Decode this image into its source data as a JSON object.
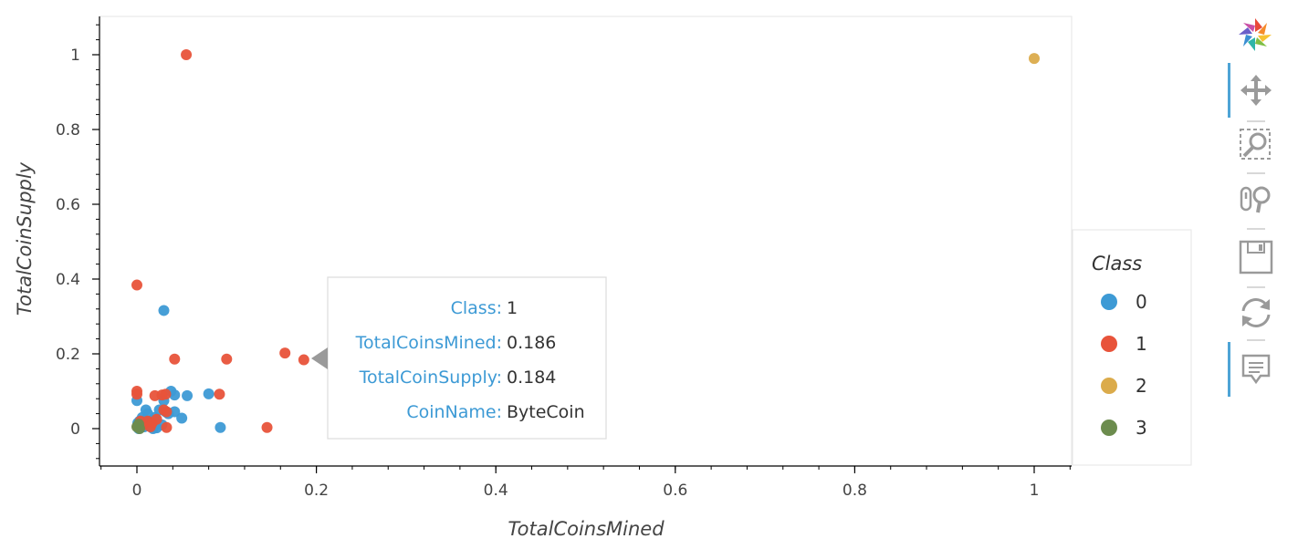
{
  "chart_data": {
    "type": "scatter",
    "title": "",
    "xlabel": "TotalCoinsMined",
    "ylabel": "TotalCoinSupply",
    "xlim": [
      -0.04,
      1.04
    ],
    "ylim": [
      -0.1,
      1.1
    ],
    "x_ticks": [
      0,
      0.2,
      0.4,
      0.6,
      0.8,
      1
    ],
    "y_ticks": [
      0,
      0.2,
      0.4,
      0.6,
      0.8,
      1
    ],
    "grid": false,
    "legend_title": "Class",
    "legend_position": "right",
    "series": [
      {
        "name": "0",
        "color": "#3d9ad5",
        "points": [
          [
            0.0,
            0.075
          ],
          [
            0.003,
            0.02
          ],
          [
            0.005,
            0.01
          ],
          [
            0.008,
            0.005
          ],
          [
            0.01,
            0.05
          ],
          [
            0.012,
            0.04
          ],
          [
            0.015,
            0.02
          ],
          [
            0.018,
            0.0
          ],
          [
            0.02,
            0.03
          ],
          [
            0.022,
            0.002
          ],
          [
            0.025,
            0.05
          ],
          [
            0.028,
            0.01
          ],
          [
            0.03,
            0.075
          ],
          [
            0.032,
            0.045
          ],
          [
            0.035,
            0.04
          ],
          [
            0.038,
            0.1
          ],
          [
            0.042,
            0.09
          ],
          [
            0.042,
            0.045
          ],
          [
            0.05,
            0.028
          ],
          [
            0.056,
            0.088
          ],
          [
            0.08,
            0.093
          ],
          [
            0.093,
            0.003
          ],
          [
            0.03,
            0.316
          ],
          [
            0.002,
            0.0
          ],
          [
            0.001,
            0.015
          ],
          [
            0.006,
            0.03
          ],
          [
            0.016,
            0.01
          ]
        ]
      },
      {
        "name": "1",
        "color": "#e8533a",
        "points": [
          [
            0.055,
            1.0
          ],
          [
            0.0,
            0.384
          ],
          [
            0.0,
            0.1
          ],
          [
            0.0,
            0.092
          ],
          [
            0.02,
            0.088
          ],
          [
            0.028,
            0.09
          ],
          [
            0.032,
            0.092
          ],
          [
            0.03,
            0.05
          ],
          [
            0.033,
            0.045
          ],
          [
            0.042,
            0.186
          ],
          [
            0.1,
            0.186
          ],
          [
            0.165,
            0.202
          ],
          [
            0.186,
            0.184
          ],
          [
            0.092,
            0.092
          ],
          [
            0.145,
            0.003
          ],
          [
            0.033,
            0.003
          ],
          [
            0.004,
            0.02
          ],
          [
            0.007,
            0.01
          ],
          [
            0.012,
            0.02
          ],
          [
            0.017,
            0.015
          ],
          [
            0.022,
            0.025
          ],
          [
            0.015,
            0.005
          ],
          [
            0.001,
            0.006
          ]
        ]
      },
      {
        "name": "2",
        "color": "#dbab4b",
        "points": [
          [
            1.0,
            0.99
          ]
        ]
      },
      {
        "name": "3",
        "color": "#6c8c4e",
        "points": [
          [
            0.0,
            0.005
          ],
          [
            0.002,
            0.012
          ],
          [
            0.003,
            0.0
          ]
        ]
      }
    ],
    "tooltip": {
      "rows": [
        {
          "key": "Class:",
          "value": "1"
        },
        {
          "key": "TotalCoinsMined:",
          "value": "0.186"
        },
        {
          "key": "TotalCoinSupply:",
          "value": "0.184"
        },
        {
          "key": "CoinName:",
          "value": "ByteCoin"
        }
      ],
      "anchor": [
        0.186,
        0.184
      ]
    }
  },
  "toolbar": {
    "tools": [
      {
        "name": "bokeh-logo-icon",
        "interactable": false
      },
      {
        "name": "pan-tool-icon",
        "interactable": true
      },
      {
        "name": "box-zoom-tool-icon",
        "interactable": true
      },
      {
        "name": "wheel-zoom-tool-icon",
        "interactable": true
      },
      {
        "name": "save-tool-icon",
        "interactable": true
      },
      {
        "name": "reset-tool-icon",
        "interactable": true
      },
      {
        "name": "hover-tool-icon",
        "interactable": true
      }
    ],
    "active_color": "#4ea4d6"
  }
}
